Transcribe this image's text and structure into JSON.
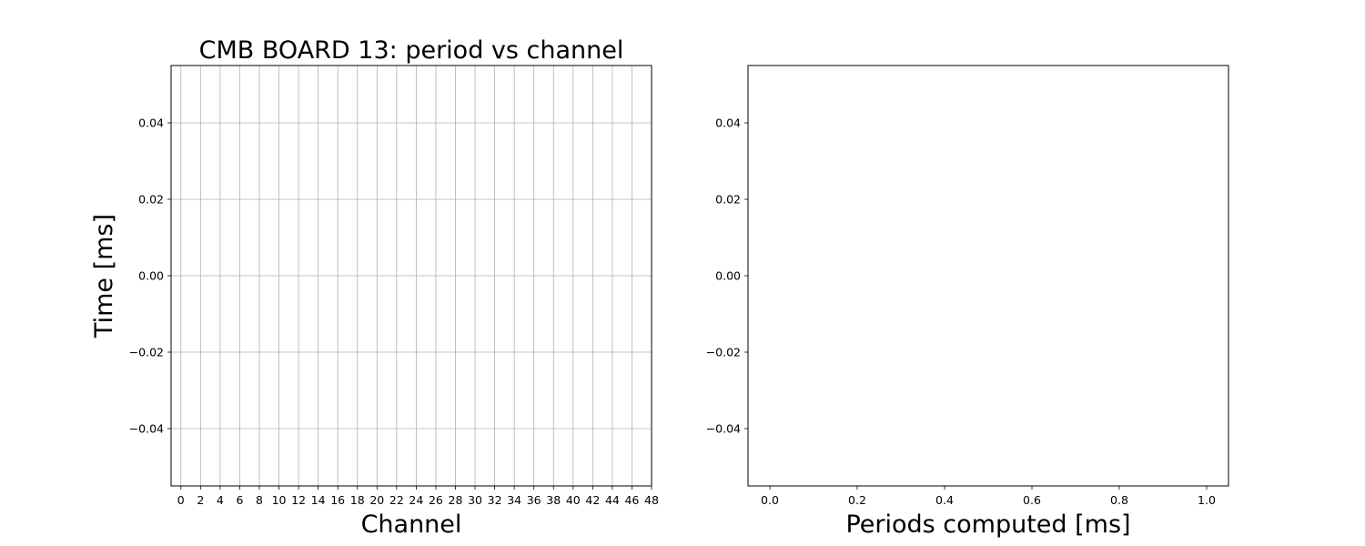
{
  "chart_data": [
    {
      "type": "scatter",
      "title": "CMB BOARD 13: period vs channel",
      "xlabel": "Channel",
      "ylabel": "Time [ms]",
      "xlim": [
        -1,
        48
      ],
      "ylim": [
        -0.055,
        0.055
      ],
      "xticks": [
        0,
        2,
        4,
        6,
        8,
        10,
        12,
        14,
        16,
        18,
        20,
        22,
        24,
        26,
        28,
        30,
        32,
        34,
        36,
        38,
        40,
        42,
        44,
        46,
        48
      ],
      "yticks": [
        -0.04,
        -0.02,
        0.0,
        0.02,
        0.04
      ],
      "ytick_labels": [
        "−0.04",
        "−0.02",
        "0.00",
        "0.02",
        "0.04"
      ],
      "grid": true,
      "series": []
    },
    {
      "type": "bar",
      "title": "",
      "xlabel": "Periods computed [ms]",
      "ylabel": "",
      "xlim": [
        -0.05,
        1.05
      ],
      "ylim": [
        -0.055,
        0.055
      ],
      "xticks": [
        0.0,
        0.2,
        0.4,
        0.6,
        0.8,
        1.0
      ],
      "xtick_labels": [
        "0.0",
        "0.2",
        "0.4",
        "0.6",
        "0.8",
        "1.0"
      ],
      "yticks": [
        -0.04,
        -0.02,
        0.0,
        0.02,
        0.04
      ],
      "ytick_labels": [
        "−0.04",
        "−0.02",
        "0.00",
        "0.02",
        "0.04"
      ],
      "grid": false,
      "series": []
    }
  ]
}
